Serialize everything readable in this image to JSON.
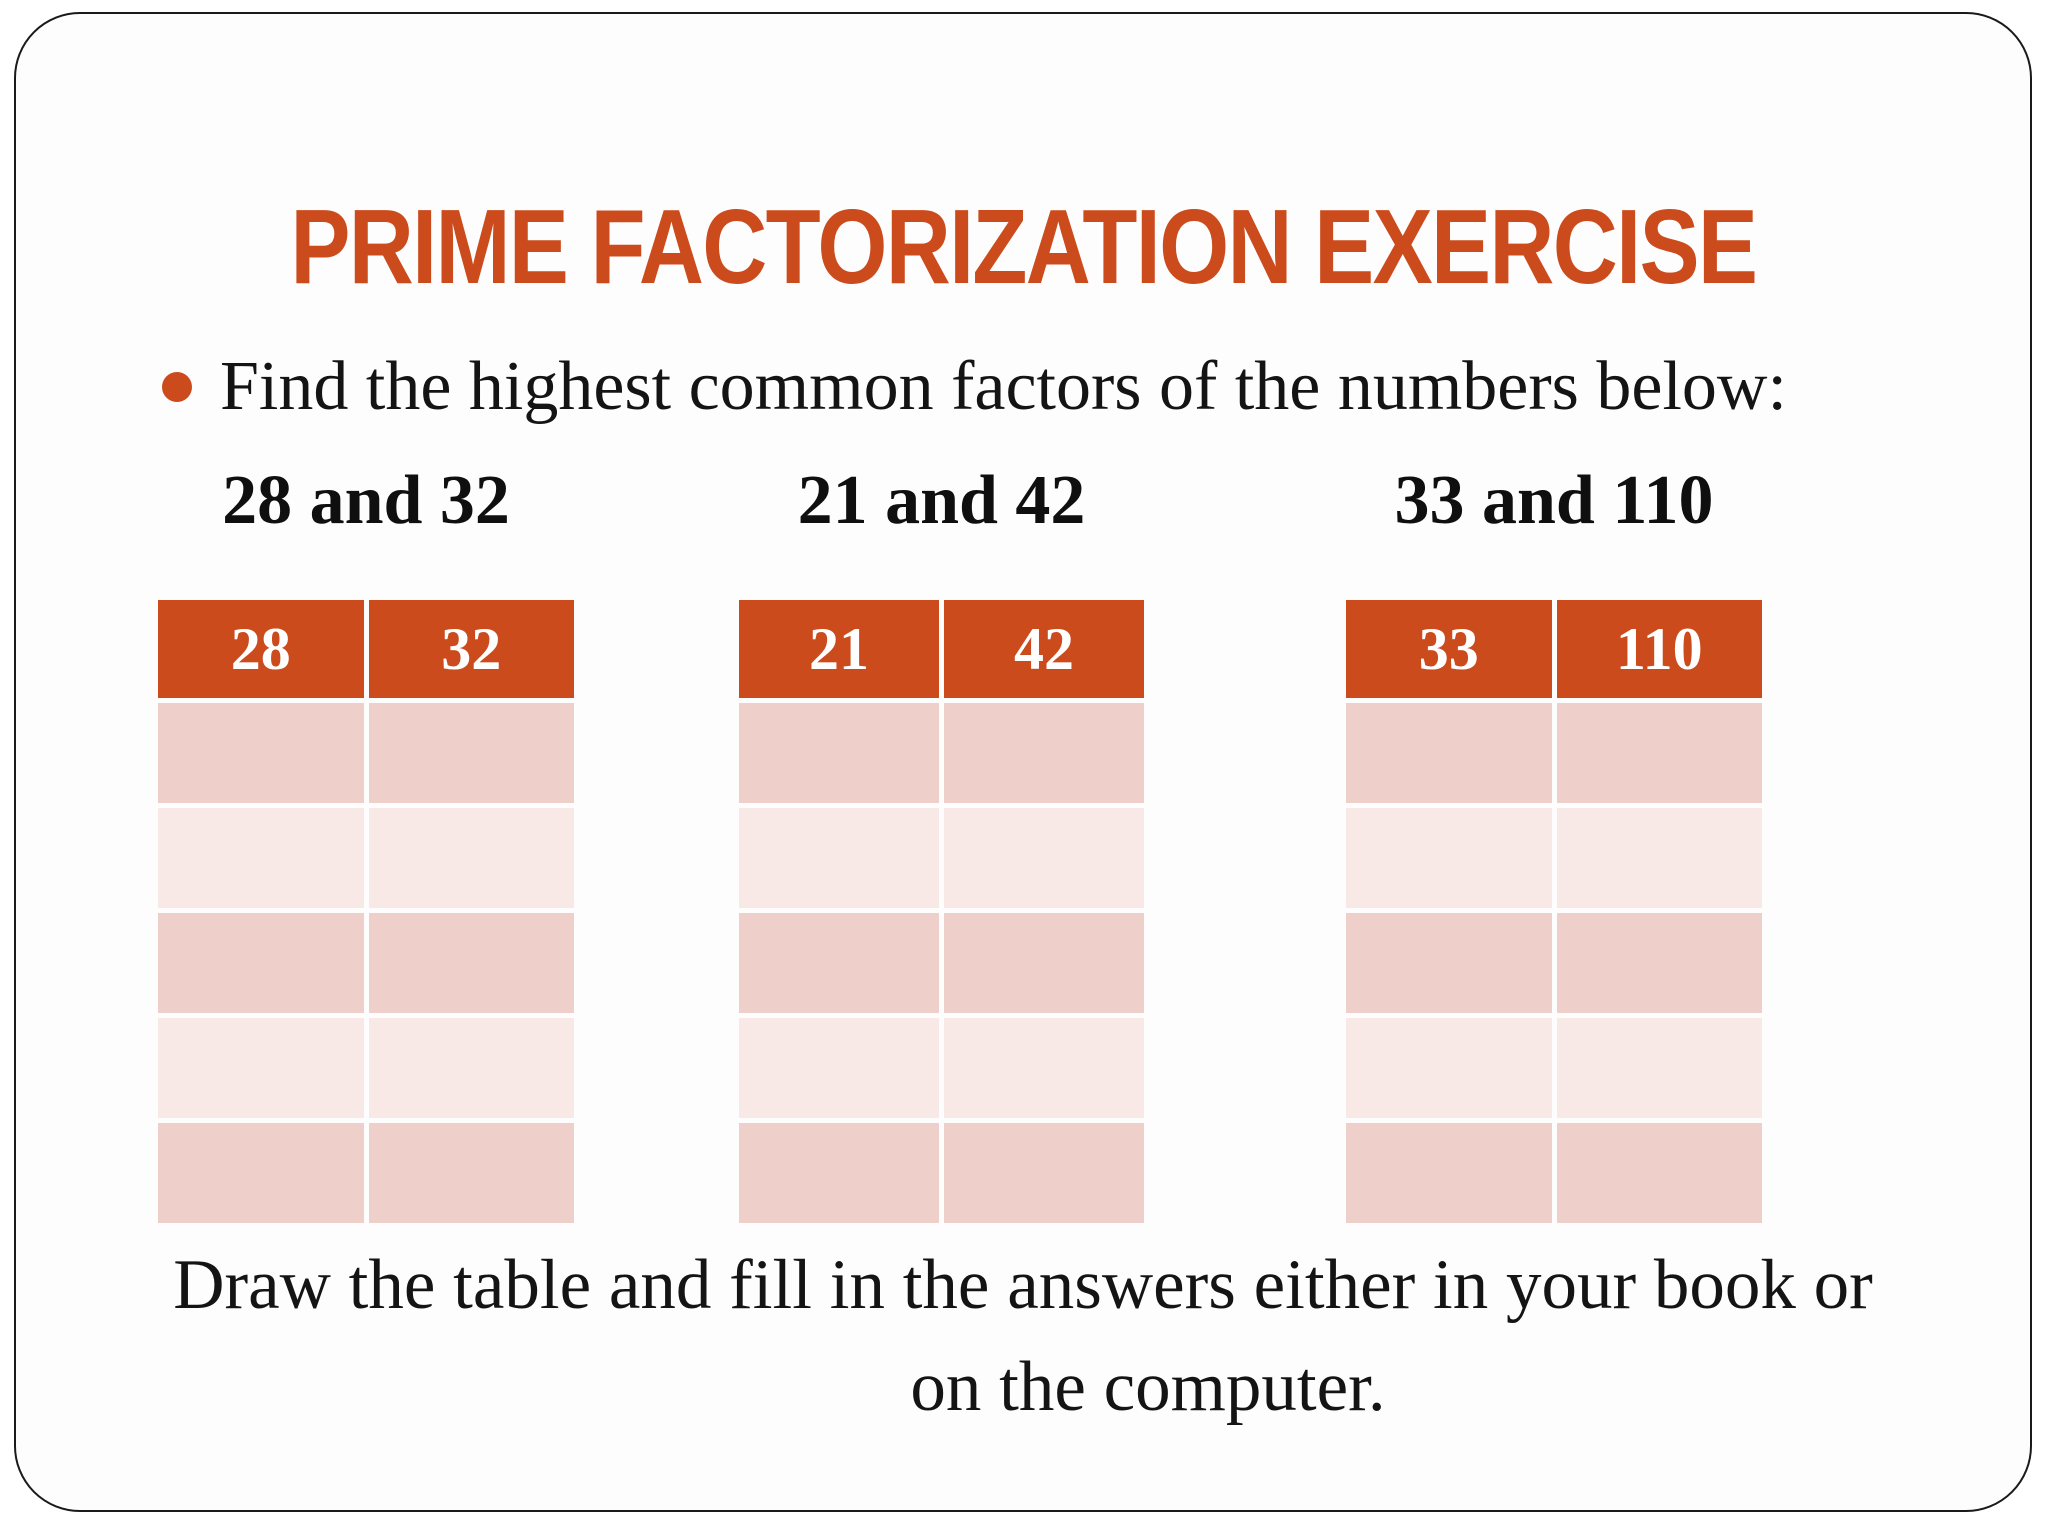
{
  "slide": {
    "title": "PRIME FACTORIZATION EXERCISE",
    "bullet_text": "Find the highest common factors of the numbers below:",
    "exercises": [
      {
        "label": "28 and 32",
        "columns": [
          "28",
          "32"
        ],
        "empty_rows": 5
      },
      {
        "label": "21 and 42",
        "columns": [
          "21",
          "42"
        ],
        "empty_rows": 5
      },
      {
        "label": "33 and 110",
        "columns": [
          "33",
          "110"
        ],
        "empty_rows": 5
      }
    ],
    "footer_line1": "Draw the table and fill in the answers either in your book or",
    "footer_line2": "on the computer.",
    "colors": {
      "accent": "#cc4b1d",
      "row_dark": "#eecfca",
      "row_light": "#f9e9e6"
    }
  }
}
